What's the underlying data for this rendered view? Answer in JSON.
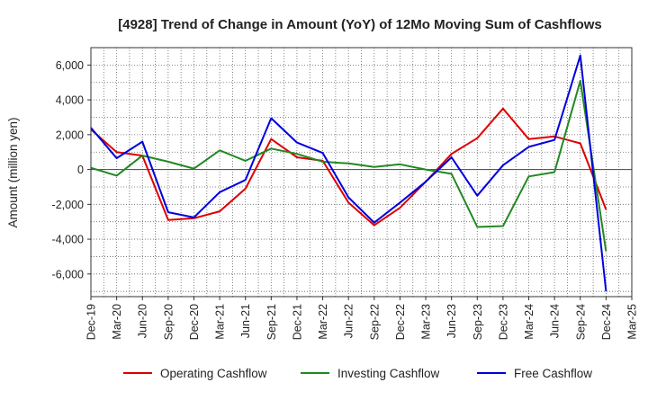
{
  "chart_data": {
    "type": "line",
    "title": "[4928]  Trend of Change in Amount (YoY) of 12Mo Moving Sum of Cashflows",
    "xlabel": "",
    "ylabel": "Amount (million yen)",
    "ylim": [
      -7300,
      7000
    ],
    "yticks": [
      -6000,
      -4000,
      -2000,
      0,
      2000,
      4000,
      6000
    ],
    "ytick_labels": [
      "-6,000",
      "-4,000",
      "-2,000",
      "0",
      "2,000",
      "4,000",
      "6,000"
    ],
    "categories": [
      "Dec-19",
      "Mar-20",
      "Jun-20",
      "Sep-20",
      "Dec-20",
      "Mar-21",
      "Jun-21",
      "Sep-21",
      "Dec-21",
      "Mar-22",
      "Jun-22",
      "Sep-22",
      "Dec-22",
      "Mar-23",
      "Jun-23",
      "Sep-23",
      "Dec-23",
      "Mar-24",
      "Jun-24",
      "Sep-24",
      "Dec-24",
      "Mar-25"
    ],
    "grid": true,
    "legend_position": "bottom",
    "series": [
      {
        "name": "Operating Cashflow",
        "color": "#dd0000",
        "values": [
          2300,
          1000,
          800,
          -2900,
          -2800,
          -2400,
          -1100,
          1750,
          700,
          500,
          -1900,
          -3200,
          -2200,
          -700,
          900,
          1800,
          3500,
          1750,
          1900,
          1500,
          -2300,
          null
        ]
      },
      {
        "name": "Investing Cashflow",
        "color": "#228822",
        "values": [
          100,
          -350,
          800,
          450,
          50,
          1100,
          500,
          1200,
          900,
          450,
          350,
          150,
          300,
          0,
          -250,
          -3300,
          -3250,
          -400,
          -150,
          5100,
          -4700,
          null
        ]
      },
      {
        "name": "Free Cashflow",
        "color": "#0000dd",
        "values": [
          2400,
          650,
          1600,
          -2450,
          -2750,
          -1300,
          -600,
          2950,
          1550,
          950,
          -1600,
          -3050,
          -1900,
          -700,
          700,
          -1500,
          250,
          1300,
          1700,
          6550,
          -7000,
          null
        ]
      }
    ]
  }
}
